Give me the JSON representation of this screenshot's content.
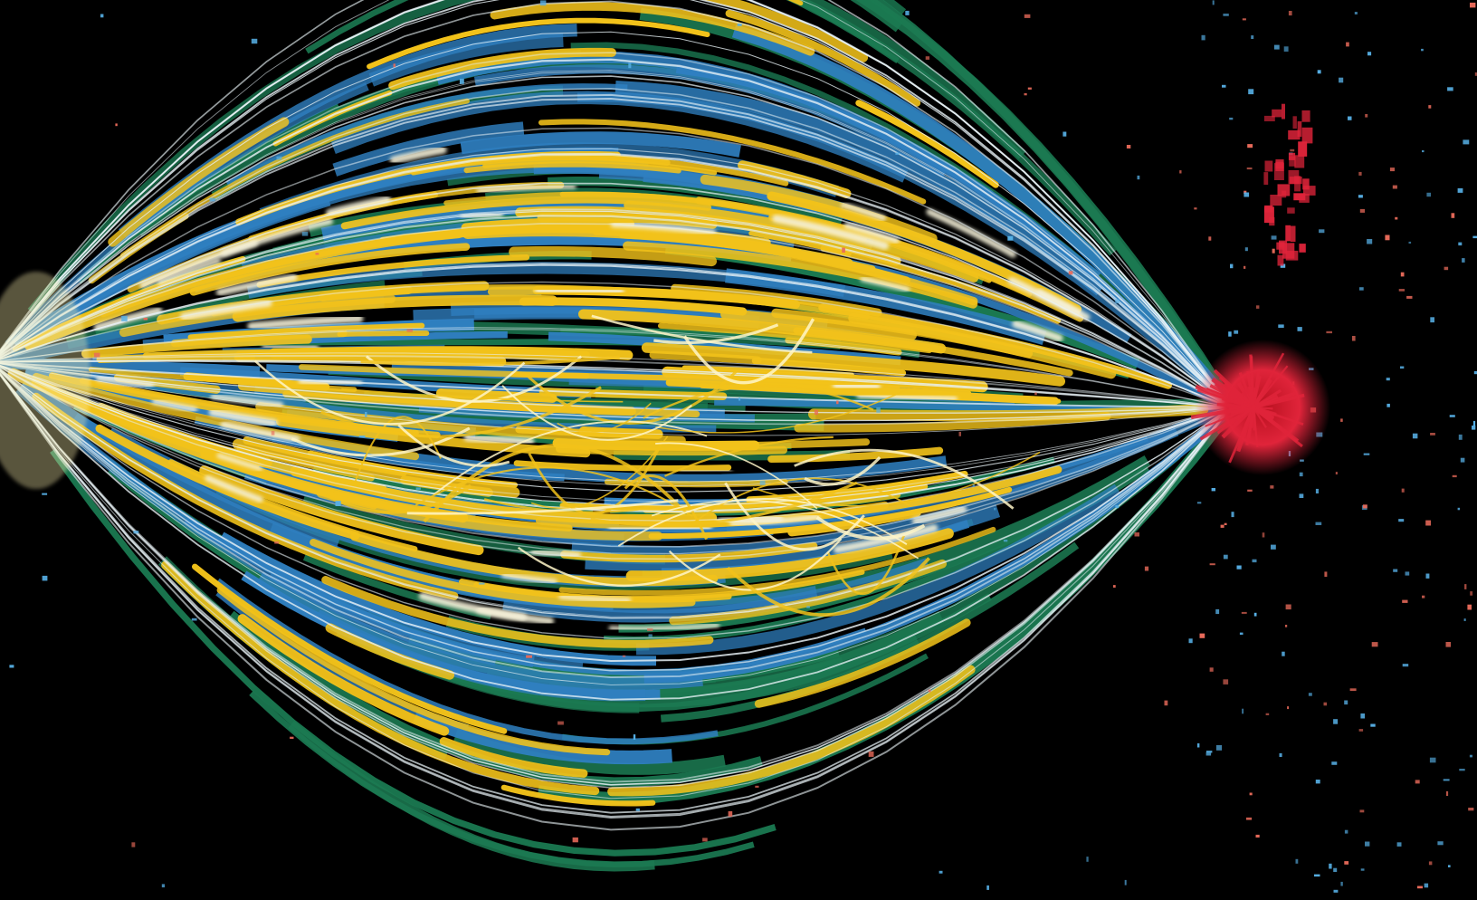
{
  "image": {
    "subject": "",
    "palette": {
      "background": "#000000",
      "green": "#1b7a52",
      "blue": "#2f7fc0",
      "yellow": "#f2c21a",
      "white": "#f4f0d8",
      "red": "#e0243a",
      "salmon": "#e86a5a",
      "light_blue": "#57b0e6"
    }
  }
}
